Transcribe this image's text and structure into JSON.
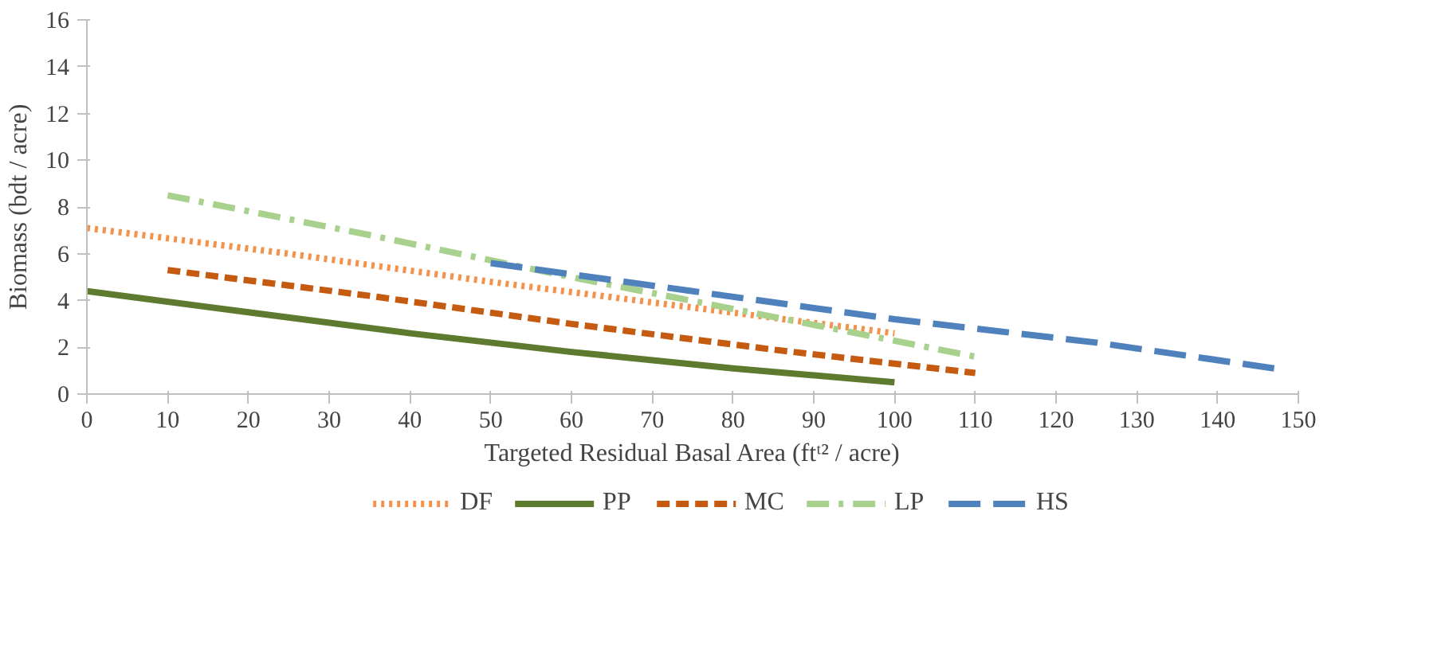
{
  "chart_data": {
    "type": "line",
    "xlabel": "Targeted Residual Basal Area (ftᵗ² / acre)",
    "ylabel": "Biomass (bdt / acre)",
    "xlim": [
      0,
      150
    ],
    "ylim": [
      0,
      16
    ],
    "xticks": [
      0,
      10,
      20,
      30,
      40,
      50,
      60,
      70,
      80,
      90,
      100,
      110,
      120,
      130,
      140,
      150
    ],
    "yticks": [
      0,
      2,
      4,
      6,
      8,
      10,
      12,
      14,
      16
    ],
    "grid": false,
    "legend": "bottom",
    "series": [
      {
        "name": "DF",
        "color": "#f4914a",
        "line_style": "dotted",
        "x": [
          0,
          25,
          50,
          75,
          100
        ],
        "values": [
          7.1,
          6.0,
          4.8,
          3.7,
          2.6
        ]
      },
      {
        "name": "PP",
        "color": "#5e7a2e",
        "line_style": "solid",
        "x": [
          0,
          20,
          40,
          50,
          60,
          80,
          100
        ],
        "values": [
          4.4,
          3.5,
          2.6,
          2.2,
          1.8,
          1.1,
          0.5
        ]
      },
      {
        "name": "MC",
        "color": "#c55a11",
        "line_style": "dashed",
        "x": [
          10,
          35,
          60,
          85,
          110
        ],
        "values": [
          5.3,
          4.2,
          3.0,
          1.9,
          0.9
        ]
      },
      {
        "name": "LP",
        "color": "#a9d18e",
        "line_style": "dashdot",
        "x": [
          10,
          35,
          60,
          85,
          110
        ],
        "values": [
          8.5,
          6.8,
          5.0,
          3.3,
          1.6
        ]
      },
      {
        "name": "HS",
        "color": "#4f81bd",
        "line_style": "longdash",
        "x": [
          50,
          75,
          100,
          125,
          147
        ],
        "values": [
          5.6,
          4.4,
          3.2,
          2.2,
          1.1
        ]
      }
    ]
  }
}
